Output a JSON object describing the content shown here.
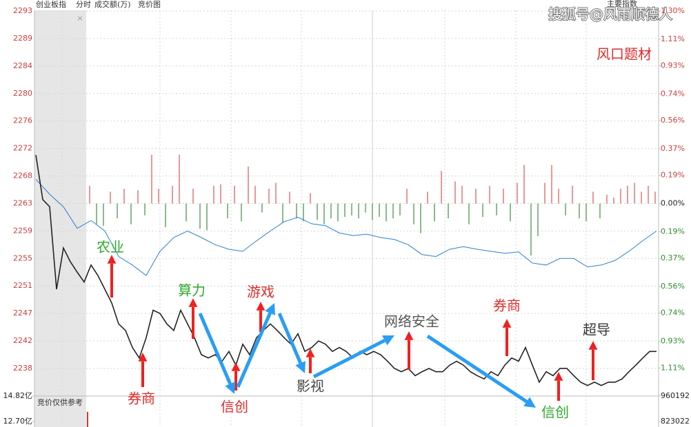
{
  "header": {
    "title": "创业板指",
    "mode": "分时",
    "volume_label": "成交额(万)",
    "view": "竞价图",
    "index_button": "主要指数"
  },
  "watermark": "搜狐号@风雨顺德人",
  "chart_data": {
    "type": "line",
    "title": "风口题材",
    "ylim": [
      2234.2,
      2292.8
    ],
    "yticks": [
      {
        "value": 2292.8,
        "label": "2293"
      },
      {
        "value": 2288.6,
        "label": "2289"
      },
      {
        "value": 2284.4,
        "label": "2284"
      },
      {
        "value": 2280.2,
        "label": "2280"
      },
      {
        "value": 2276.0,
        "label": "2276"
      },
      {
        "value": 2271.8,
        "label": "2272"
      },
      {
        "value": 2267.6,
        "label": "2268"
      },
      {
        "value": 2263.4,
        "label": "2263"
      },
      {
        "value": 2259.2,
        "label": "2259"
      },
      {
        "value": 2255.0,
        "label": "2255"
      },
      {
        "value": 2250.8,
        "label": "2251"
      },
      {
        "value": 2246.6,
        "label": "2247"
      },
      {
        "value": 2242.4,
        "label": "2242"
      },
      {
        "value": 2238.2,
        "label": "2238"
      }
    ],
    "y2lim": [
      -1.29,
      1.3
    ],
    "y2ticks": [
      {
        "value": 1.3,
        "label": "1.30%"
      },
      {
        "value": 1.11,
        "label": "1.11%"
      },
      {
        "value": 0.93,
        "label": "0.93%"
      },
      {
        "value": 0.74,
        "label": "0.74%"
      },
      {
        "value": 0.56,
        "label": "0.56%"
      },
      {
        "value": 0.37,
        "label": "0.37%"
      },
      {
        "value": 0.19,
        "label": "0.19%"
      },
      {
        "value": 0,
        "label": "0.00%"
      },
      {
        "value": -0.19,
        "label": "0.19%"
      },
      {
        "value": -0.37,
        "label": "0.37%"
      },
      {
        "value": -0.56,
        "label": "0.56%"
      },
      {
        "value": -0.74,
        "label": "0.74%"
      },
      {
        "value": -0.93,
        "label": "0.93%"
      },
      {
        "value": -1.11,
        "label": "1.11%"
      }
    ],
    "grid": true,
    "series": [
      {
        "color": "#222222",
        "values": [
          2270.8,
          2264.0,
          2262.9,
          2250.3,
          2256.6,
          2254.5,
          2252.9,
          2251.4,
          2254.0,
          2252.4,
          2250.3,
          2248.2,
          2245.0,
          2244.0,
          2241.4,
          2239.8,
          2242.9,
          2247.1,
          2246.6,
          2245.0,
          2244.0,
          2247.1,
          2245.0,
          2242.9,
          2240.3,
          2239.8,
          2240.3,
          2239.3,
          2240.8,
          2238.7,
          2241.9,
          2240.3,
          2242.9,
          2244.0,
          2245.0,
          2244.0,
          2242.9,
          2241.9,
          2243.5,
          2240.8,
          2241.4,
          2242.4,
          2241.9,
          2240.8,
          2241.4,
          2240.8,
          2239.8,
          2240.8,
          2240.3,
          2240.8,
          2240.3,
          2239.3,
          2238.2,
          2237.7,
          2238.2,
          2237.1,
          2237.7,
          2238.2,
          2237.7,
          2237.7,
          2238.7,
          2239.3,
          2238.7,
          2237.7,
          2237.1,
          2236.6,
          2237.7,
          2237.1,
          2238.7,
          2239.8,
          2239.3,
          2241.4,
          2238.7,
          2236.1,
          2237.7,
          2237.1,
          2238.2,
          2238.2,
          2237.1,
          2236.1,
          2235.6,
          2236.1,
          2235.6,
          2236.1,
          2236.1,
          2236.6,
          2237.7,
          2238.7,
          2239.8,
          2240.8,
          2240.8
        ]
      },
      {
        "color": "#2b7fd0",
        "values": [
          2267.1,
          2264.8,
          2262.9,
          2259.6,
          2260.8,
          2259.2,
          2255.3,
          2254.0,
          2252.4,
          2256.1,
          2258.2,
          2259.2,
          2258.2,
          2257.1,
          2256.4,
          2256.1,
          2257.7,
          2259.2,
          2260.6,
          2261.3,
          2260.3,
          2260.0,
          2258.9,
          2258.5,
          2258.7,
          2258.2,
          2257.9,
          2257.1,
          2255.6,
          2255.3,
          2256.4,
          2256.8,
          2256.4,
          2256.1,
          2255.8,
          2256.0,
          2254.3,
          2254.0,
          2255.0,
          2255.0,
          2253.7,
          2254.0,
          2254.7,
          2256.1,
          2257.7,
          2259.2
        ]
      },
      {
        "type": "bar",
        "axis": "y2",
        "up_color": "#d9534f",
        "down_color": "#3d8b3d",
        "values": [
          0.12,
          -0.14,
          -0.15,
          0.08,
          -0.1,
          0.1,
          -0.14,
          0.09,
          -0.08,
          0.33,
          0.1,
          -0.16,
          0.12,
          0.33,
          -0.12,
          0.1,
          -0.17,
          -0.18,
          0.12,
          0.13,
          -0.1,
          0.12,
          -0.12,
          0.25,
          0.12,
          -0.06,
          0.1,
          0.14,
          -0.13,
          0.08,
          -0.1,
          -0.12,
          0.07,
          -0.11,
          -0.14,
          -0.1,
          -0.12,
          -0.09,
          -0.08,
          -0.1,
          -0.06,
          -0.11,
          -0.09,
          -0.12,
          -0.1,
          -0.08,
          0.1,
          -0.14,
          -0.2,
          0.08,
          -0.12,
          0.22,
          -0.1,
          0.15,
          0.12,
          -0.14,
          0.1,
          -0.09,
          0.12,
          -0.08,
          0.1,
          -0.12,
          0.14,
          0.26,
          -0.35,
          -0.22,
          0.14,
          0.26,
          0.1,
          -0.08,
          0.12,
          -0.1,
          -0.12,
          0.08,
          -0.1,
          0.06,
          0.04,
          0.1,
          0.12,
          0.14,
          0.08,
          0.12,
          0.08
        ]
      }
    ],
    "annotations": [
      {
        "text": "农业",
        "color": "#2ea82e"
      },
      {
        "text": "券商",
        "color": "#e02a2a"
      },
      {
        "text": "算力",
        "color": "#2ea82e"
      },
      {
        "text": "信创",
        "color": "#e02a2a"
      },
      {
        "text": "游戏",
        "color": "#e02a2a"
      },
      {
        "text": "影视",
        "color": "#444444"
      },
      {
        "text": "网络安全",
        "color": "#555555"
      },
      {
        "text": "券商",
        "color": "#e02a2a"
      },
      {
        "text": "信创",
        "color": "#2ea82e"
      },
      {
        "text": "超导",
        "color": "#333333"
      }
    ]
  },
  "volume_panel": {
    "note": "竞价仅供参考",
    "ylim": [
      12.24,
      14.82
    ],
    "yticks": [
      {
        "value": 14.82,
        "label": "14.82亿"
      },
      {
        "value": 12.7,
        "label": "12.70亿"
      }
    ],
    "y2lim": [
      793362,
      960192
    ],
    "y2ticks": [
      960192,
      823022
    ],
    "color": "#e03030",
    "values": [
      13.5
    ]
  }
}
